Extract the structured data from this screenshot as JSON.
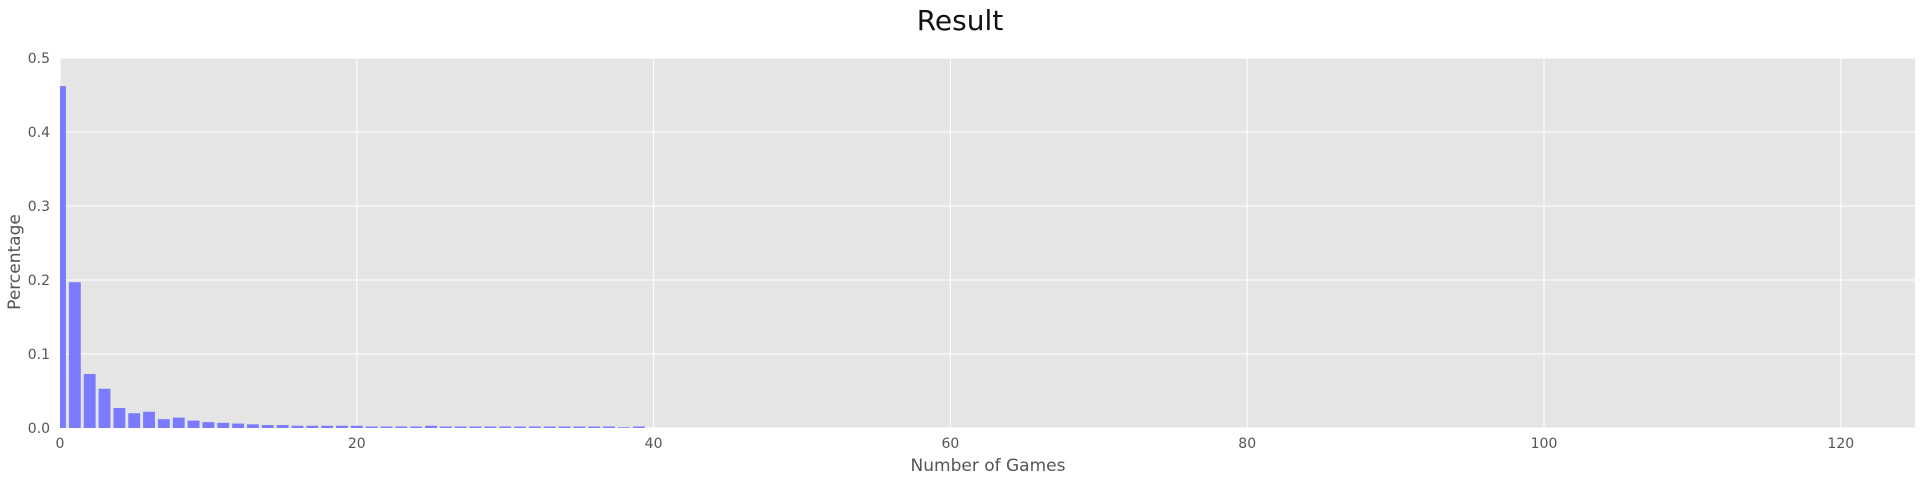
{
  "chart_data": {
    "type": "bar",
    "title": "Result",
    "xlabel": "Number of Games",
    "ylabel": "Percentage",
    "xlim": [
      0,
      125
    ],
    "ylim": [
      0,
      0.5
    ],
    "xticks": [
      0,
      20,
      40,
      60,
      80,
      100,
      120
    ],
    "yticks": [
      0.0,
      0.1,
      0.2,
      0.3,
      0.4,
      0.5
    ],
    "xtick_labels": [
      "0",
      "20",
      "40",
      "60",
      "80",
      "100",
      "120"
    ],
    "ytick_labels": [
      "0.0",
      "0.1",
      "0.2",
      "0.3",
      "0.4",
      "0.5"
    ],
    "grid": true,
    "bar_color": "#7b7bff",
    "background_color": "#e5e5e5",
    "grid_color": "#ffffff",
    "x": [
      0,
      1,
      2,
      3,
      4,
      5,
      6,
      7,
      8,
      9,
      10,
      11,
      12,
      13,
      14,
      15,
      16,
      17,
      18,
      19,
      20,
      21,
      22,
      23,
      24,
      25,
      26,
      27,
      28,
      29,
      30,
      31,
      32,
      33,
      34,
      35,
      36,
      37,
      38,
      39
    ],
    "values": [
      0.462,
      0.197,
      0.073,
      0.053,
      0.027,
      0.02,
      0.022,
      0.012,
      0.014,
      0.01,
      0.008,
      0.007,
      0.006,
      0.005,
      0.004,
      0.004,
      0.003,
      0.003,
      0.003,
      0.003,
      0.003,
      0.002,
      0.002,
      0.002,
      0.002,
      0.003,
      0.002,
      0.002,
      0.002,
      0.002,
      0.002,
      0.002,
      0.002,
      0.002,
      0.002,
      0.002,
      0.002,
      0.002,
      0.001,
      0.002
    ]
  }
}
